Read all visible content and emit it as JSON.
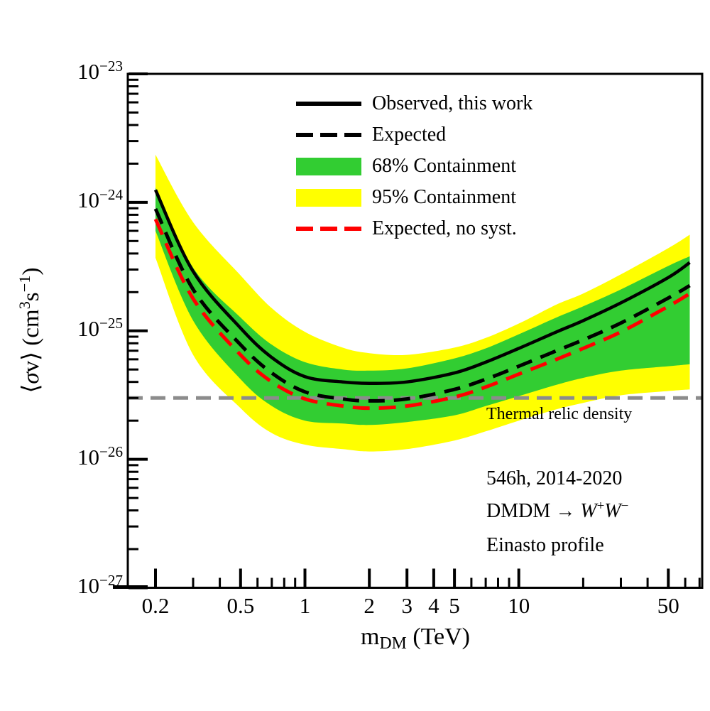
{
  "legend": {
    "items": [
      {
        "label": "Observed, this work",
        "marker": "line",
        "line_style": "solid",
        "color": "#000000"
      },
      {
        "label": "Expected",
        "marker": "line",
        "line_style": "dashed",
        "color": "#000000"
      },
      {
        "label": "68% Containment",
        "marker": "box",
        "color": "#32CD32"
      },
      {
        "label": "95% Containment",
        "marker": "box",
        "color": "#FFFF00"
      },
      {
        "label": "Expected, no syst.",
        "marker": "line",
        "line_style": "dashed",
        "color": "#FF0000"
      }
    ]
  },
  "annotations": {
    "relic_label": "Thermal relic density",
    "exposure": "546h, 2014-2020",
    "channel_segments": [
      {
        "text": "DMDM "
      },
      {
        "text": "→ "
      },
      {
        "text": "W",
        "italic": true
      },
      {
        "text": "+",
        "sup": true
      },
      {
        "text": "W",
        "italic": true
      },
      {
        "text": "−",
        "sup": true
      }
    ],
    "profile": "Einasto profile"
  },
  "labels": {
    "xlabel_segments": [
      {
        "text": "m"
      },
      {
        "text": "DM",
        "sub": true
      },
      {
        "text": " (TeV)"
      }
    ],
    "ylabel_segments": [
      {
        "text": "⟨",
        "sans": true
      },
      {
        "text": "σ",
        "italic": true
      },
      {
        "text": "v"
      },
      {
        "text": "⟩",
        "sans": true
      },
      {
        "text": " (cm"
      },
      {
        "text": "3",
        "sup": true
      },
      {
        "text": "s"
      },
      {
        "text": "−1",
        "sup": true
      },
      {
        "text": ")"
      }
    ]
  },
  "chart_data": {
    "type": "line",
    "title": "",
    "xlabel": "m_DM (TeV)",
    "ylabel": "⟨σv⟩ (cm³s⁻¹)",
    "xscale": "log",
    "yscale": "log",
    "xlim": [
      0.1485,
      72
    ],
    "ylim": [
      1e-27,
      1e-23
    ],
    "grid": false,
    "legend_position": "upper center-right, no frame",
    "x_tev": [
      0.2,
      0.3,
      0.5,
      0.7,
      1.0,
      1.5,
      2.0,
      3.0,
      5.0,
      7.0,
      10,
      15,
      20,
      30,
      50,
      63
    ],
    "series": [
      {
        "name": "Observed, this work",
        "color": "#000000",
        "style": "solid",
        "width": 4.5,
        "values": [
          1.25e-24,
          2.9e-25,
          1.05e-25,
          6.2e-26,
          4.4e-26,
          4e-26,
          3.9e-26,
          4e-26,
          4.7e-26,
          5.7e-26,
          7.3e-26,
          9.8e-26,
          1.2e-25,
          1.65e-25,
          2.6e-25,
          3.4e-25
        ]
      },
      {
        "name": "Expected",
        "color": "#000000",
        "style": "dashed",
        "width": 5,
        "values": [
          8.9e-25,
          2.1e-25,
          7.8e-26,
          4.7e-26,
          3.35e-26,
          2.95e-26,
          2.85e-26,
          2.95e-26,
          3.5e-26,
          4.2e-26,
          5.3e-26,
          7e-26,
          8.5e-26,
          1.15e-25,
          1.8e-25,
          2.25e-25
        ]
      },
      {
        "name": "Expected, no syst.",
        "color": "#FF0000",
        "style": "dashed",
        "width": 5,
        "values": [
          7.4e-25,
          1.78e-25,
          6.5e-26,
          4e-26,
          2.95e-26,
          2.6e-26,
          2.5e-26,
          2.6e-26,
          3.05e-26,
          3.65e-26,
          4.6e-26,
          6e-26,
          7.3e-26,
          9.8e-26,
          1.55e-25,
          1.95e-25
        ]
      }
    ],
    "bands": [
      {
        "name": "95% Containment",
        "color": "#FFFF00",
        "upper": [
          2.35e-24,
          7e-25,
          2.7e-25,
          1.5e-25,
          9.8e-26,
          7.4e-26,
          6.7e-26,
          6.5e-26,
          7.4e-26,
          8.8e-26,
          1.14e-25,
          1.6e-25,
          1.95e-25,
          2.75e-25,
          4.4e-25,
          5.6e-25
        ],
        "lower": [
          3.7e-25,
          6.5e-26,
          2.5e-26,
          1.6e-26,
          1.3e-26,
          1.2e-26,
          1.15e-26,
          1.2e-26,
          1.4e-26,
          1.65e-26,
          2e-26,
          2.45e-26,
          2.75e-26,
          3.15e-26,
          3.4e-26,
          3.5e-26
        ]
      },
      {
        "name": "68% Containment",
        "color": "#32CD32",
        "upper": [
          1.3e-24,
          3.1e-25,
          1.27e-25,
          7.8e-26,
          5.7e-26,
          5e-26,
          4.9e-26,
          5.1e-26,
          6.1e-26,
          7.3e-26,
          9.4e-26,
          1.27e-25,
          1.55e-25,
          2.1e-25,
          3.2e-25,
          3.8e-25
        ],
        "lower": [
          6e-25,
          1.2e-25,
          4.2e-26,
          2.6e-26,
          2e-26,
          1.9e-26,
          1.85e-26,
          1.95e-26,
          2.2e-26,
          2.6e-26,
          3.1e-26,
          3.8e-26,
          4.3e-26,
          4.9e-26,
          5.3e-26,
          5.5e-26
        ]
      }
    ],
    "reference_line": {
      "label": "Thermal relic density",
      "value": 3e-26,
      "color": "#8C8C8C",
      "style": "dashed",
      "width": 5
    },
    "axis": {
      "y_base": "10",
      "y_major": [
        {
          "v": 1e-23,
          "exp": "−23"
        },
        {
          "v": 1e-24,
          "exp": "−24"
        },
        {
          "v": 1e-25,
          "exp": "−25"
        },
        {
          "v": 1e-26,
          "exp": "−26"
        },
        {
          "v": 1e-27,
          "exp": "−27"
        }
      ],
      "y_minor_subs": [
        2,
        3,
        4,
        5,
        6,
        7,
        8,
        9
      ],
      "x_major": [
        {
          "v": 0.2,
          "label": "0.2"
        },
        {
          "v": 0.5,
          "label": "0.5"
        },
        {
          "v": 1,
          "label": "1"
        },
        {
          "v": 2,
          "label": "2"
        },
        {
          "v": 3,
          "label": "3"
        },
        {
          "v": 4,
          "label": "4"
        },
        {
          "v": 5,
          "label": "5"
        },
        {
          "v": 10,
          "label": "10"
        },
        {
          "v": 50,
          "label": "50"
        }
      ],
      "x_minor": [
        0.3,
        0.4,
        0.6,
        0.7,
        0.8,
        0.9,
        6,
        7,
        8,
        9,
        20,
        30,
        40,
        60,
        70
      ]
    }
  }
}
